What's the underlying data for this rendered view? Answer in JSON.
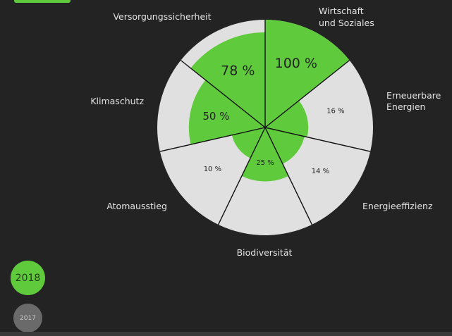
{
  "colors": {
    "background": "#232323",
    "accent": "#5fcb3c",
    "sector_background": "#e0e0e0",
    "divider": "#111111",
    "label": "#e2e2e2",
    "inactive_button": "#6a6a6a",
    "inactive_button_text": "#c8c8c8",
    "active_button_text": "#1e3a12"
  },
  "years": {
    "active": "2018",
    "inactive": "2017"
  },
  "chart_data": {
    "type": "pie",
    "subtype": "radial-sector-progress",
    "value_unit": "%",
    "range": [
      0,
      100
    ],
    "series": [
      {
        "category": "Wirtschaft und Soziales",
        "label_lines": [
          "Wirtschaft",
          "und Soziales"
        ],
        "value": 100,
        "value_label": "100 %"
      },
      {
        "category": "Erneuerbare Energien",
        "label_lines": [
          "Erneuerbare",
          "Energien"
        ],
        "value": 16,
        "value_label": "16 %"
      },
      {
        "category": "Energieeffizienz",
        "label_lines": [
          "Energieeffizienz"
        ],
        "value": 14,
        "value_label": "14 %"
      },
      {
        "category": "Biodiversität",
        "label_lines": [
          "Biodiversität"
        ],
        "value": 25,
        "value_label": "25 %"
      },
      {
        "category": "Atomausstieg",
        "label_lines": [
          "Atomausstieg"
        ],
        "value": 10,
        "value_label": "10 %"
      },
      {
        "category": "Klimaschutz",
        "label_lines": [
          "Klimaschutz"
        ],
        "value": 50,
        "value_label": "50 %"
      },
      {
        "category": "Versorgungssicherheit",
        "label_lines": [
          "Versorgungssicherheit"
        ],
        "value": 78,
        "value_label": "78 %"
      }
    ]
  }
}
